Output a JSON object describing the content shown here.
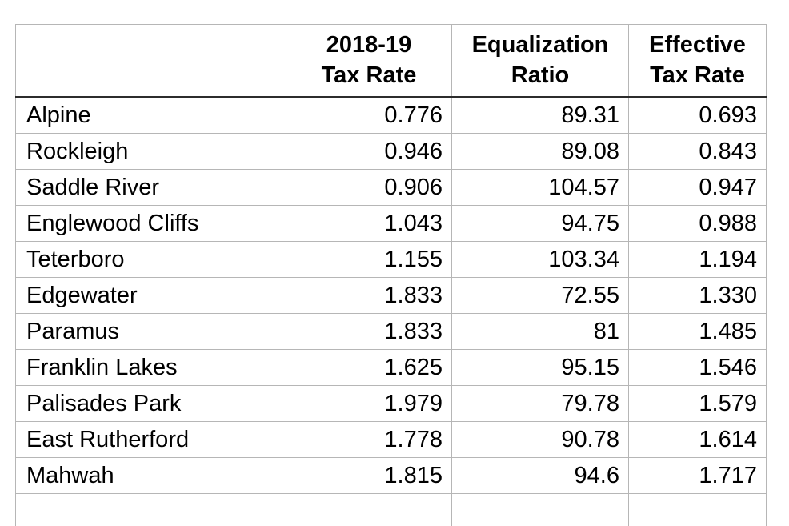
{
  "table": {
    "columns": [
      {
        "key": "municipality",
        "label": ""
      },
      {
        "key": "tax_rate",
        "label": "2018-19\nTax Rate"
      },
      {
        "key": "equalization_ratio",
        "label": "Equalization\nRatio"
      },
      {
        "key": "effective_tax_rate",
        "label": "Effective\nTax Rate"
      }
    ],
    "rows": [
      {
        "municipality": "Alpine",
        "tax_rate": "0.776",
        "equalization_ratio": "89.31",
        "effective_tax_rate": "0.693"
      },
      {
        "municipality": "Rockleigh",
        "tax_rate": "0.946",
        "equalization_ratio": "89.08",
        "effective_tax_rate": "0.843"
      },
      {
        "municipality": "Saddle River",
        "tax_rate": "0.906",
        "equalization_ratio": "104.57",
        "effective_tax_rate": "0.947"
      },
      {
        "municipality": "Englewood Cliffs",
        "tax_rate": "1.043",
        "equalization_ratio": "94.75",
        "effective_tax_rate": "0.988"
      },
      {
        "municipality": "Teterboro",
        "tax_rate": "1.155",
        "equalization_ratio": "103.34",
        "effective_tax_rate": "1.194"
      },
      {
        "municipality": "Edgewater",
        "tax_rate": "1.833",
        "equalization_ratio": "72.55",
        "effective_tax_rate": "1.330"
      },
      {
        "municipality": "Paramus",
        "tax_rate": "1.833",
        "equalization_ratio": "81",
        "effective_tax_rate": "1.485"
      },
      {
        "municipality": "Franklin Lakes",
        "tax_rate": "1.625",
        "equalization_ratio": "95.15",
        "effective_tax_rate": "1.546"
      },
      {
        "municipality": "Palisades Park",
        "tax_rate": "1.979",
        "equalization_ratio": "79.78",
        "effective_tax_rate": "1.579"
      },
      {
        "municipality": "East Rutherford",
        "tax_rate": "1.778",
        "equalization_ratio": "90.78",
        "effective_tax_rate": "1.614"
      },
      {
        "municipality": "Mahwah",
        "tax_rate": "1.815",
        "equalization_ratio": "94.6",
        "effective_tax_rate": "1.717"
      }
    ],
    "border_color": "#b6b6b6",
    "header_rule_color": "#2c2c2c",
    "text_color": "#000000",
    "background_color": "#ffffff"
  }
}
